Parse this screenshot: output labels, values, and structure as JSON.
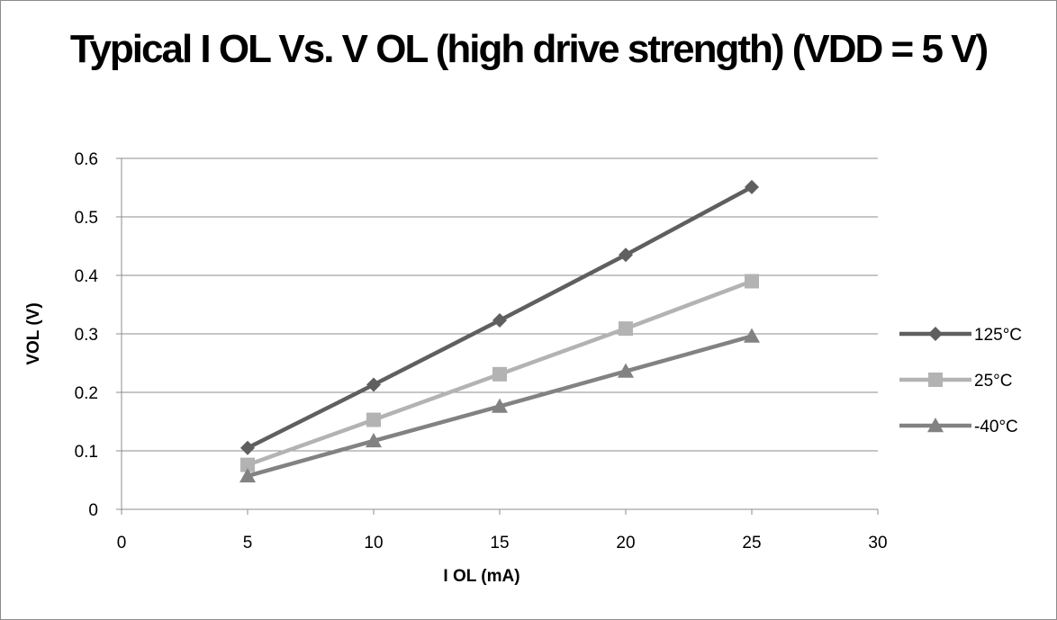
{
  "chart_data": {
    "type": "line",
    "title": "Typical I OL Vs. V OL (high drive strength) (VDD  = 5 V)",
    "xlabel": "I OL (mA)",
    "ylabel": "VOL (V)",
    "xlim": [
      0,
      30
    ],
    "ylim": [
      0,
      0.6
    ],
    "xticks": [
      0,
      5,
      10,
      15,
      20,
      25,
      30
    ],
    "yticks": [
      0,
      0.1,
      0.2,
      0.3,
      0.4,
      0.5,
      0.6
    ],
    "grid": "horizontal",
    "legend_position": "right",
    "x": [
      5,
      10,
      15,
      20,
      25
    ],
    "series": [
      {
        "name": "125°C",
        "values": [
          0.105,
          0.213,
          0.323,
          0.435,
          0.551
        ],
        "marker": "diamond",
        "color": "#5f5f5f"
      },
      {
        "name": "25°C",
        "values": [
          0.076,
          0.153,
          0.231,
          0.309,
          0.39
        ],
        "marker": "square",
        "color": "#b3b3b3"
      },
      {
        "name": "-40°C",
        "values": [
          0.057,
          0.117,
          0.176,
          0.236,
          0.296
        ],
        "marker": "triangle",
        "color": "#828282"
      }
    ]
  }
}
